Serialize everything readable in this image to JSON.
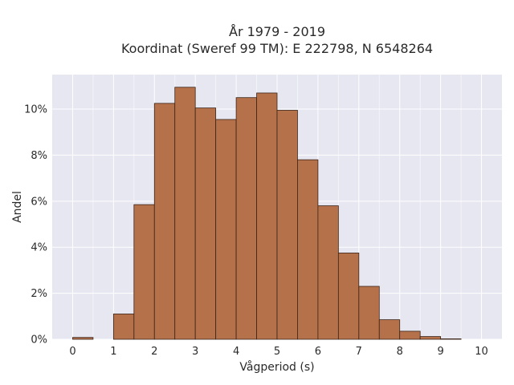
{
  "chart_data": {
    "type": "bar",
    "title_line1": "År 1979 - 2019",
    "title_line2": "Koordinat (Sweref 99 TM): E 222798, N 6548264",
    "xlabel": "Vågperiod (s)",
    "ylabel": "Andel",
    "xlim": [
      -0.5,
      10.5
    ],
    "ylim": [
      0,
      11.5
    ],
    "x_ticks": [
      0,
      1,
      2,
      3,
      4,
      5,
      6,
      7,
      8,
      9,
      10
    ],
    "y_ticks": [
      0,
      2,
      4,
      6,
      8,
      10
    ],
    "y_tick_labels": [
      "0%",
      "2%",
      "4%",
      "6%",
      "8%",
      "10%"
    ],
    "grid": true,
    "bin_width": 0.5,
    "bins": [
      {
        "x0": 0.0,
        "value": 0.08
      },
      {
        "x0": 0.5,
        "value": 0.0
      },
      {
        "x0": 1.0,
        "value": 1.1
      },
      {
        "x0": 1.5,
        "value": 5.85
      },
      {
        "x0": 2.0,
        "value": 10.25
      },
      {
        "x0": 2.5,
        "value": 10.95
      },
      {
        "x0": 3.0,
        "value": 10.05
      },
      {
        "x0": 3.5,
        "value": 9.55
      },
      {
        "x0": 4.0,
        "value": 10.5
      },
      {
        "x0": 4.5,
        "value": 10.7
      },
      {
        "x0": 5.0,
        "value": 9.95
      },
      {
        "x0": 5.5,
        "value": 7.8
      },
      {
        "x0": 6.0,
        "value": 5.8
      },
      {
        "x0": 6.5,
        "value": 3.75
      },
      {
        "x0": 7.0,
        "value": 2.3
      },
      {
        "x0": 7.5,
        "value": 0.85
      },
      {
        "x0": 8.0,
        "value": 0.35
      },
      {
        "x0": 8.5,
        "value": 0.12
      },
      {
        "x0": 9.0,
        "value": 0.02
      }
    ],
    "colors": {
      "bar_fill": "#b5714a",
      "bar_edge": "#3b2418",
      "plot_bg": "#e6e7f0"
    }
  }
}
